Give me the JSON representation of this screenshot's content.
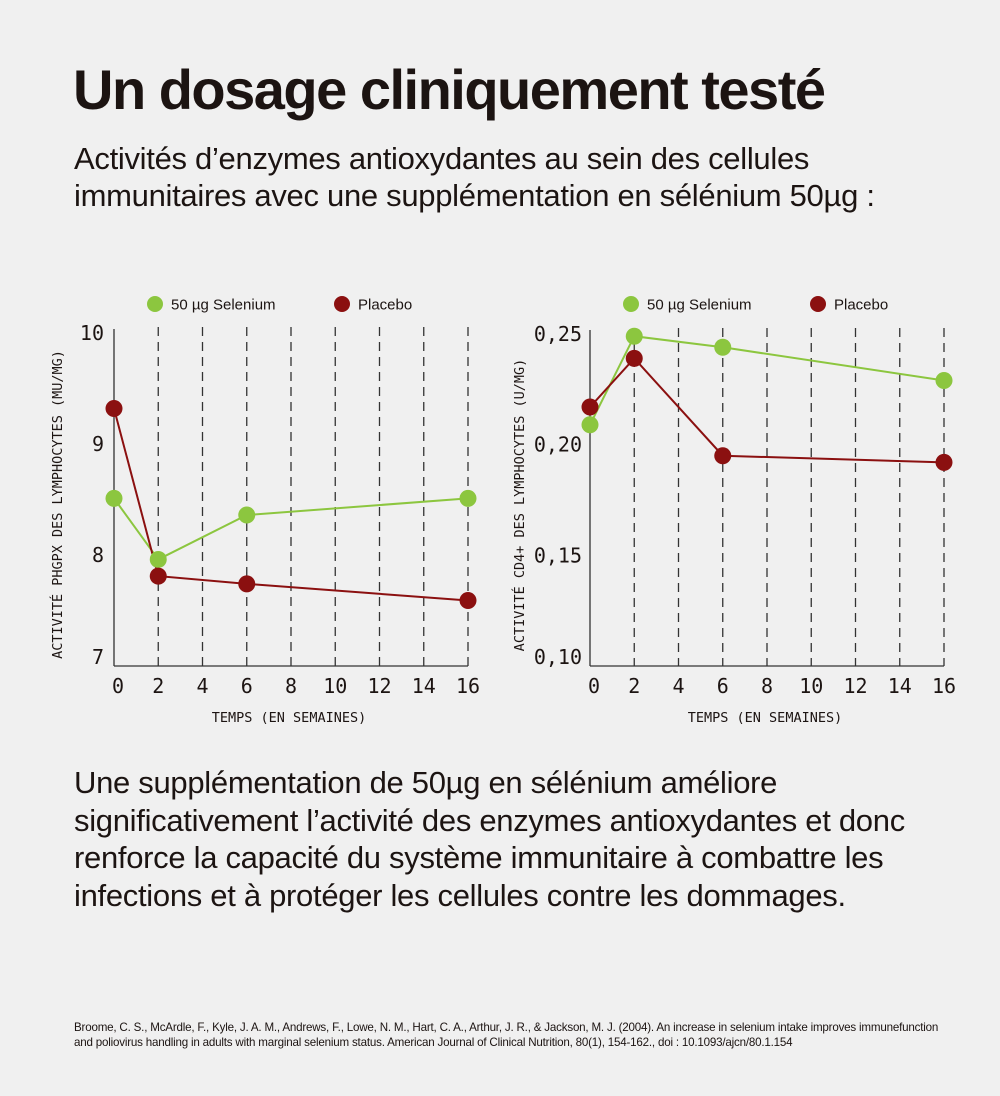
{
  "header": {
    "title": "Un dosage cliniquement testé",
    "subtitle": "Activités d’enzymes antioxydantes au sein des cellules immunitaires avec une supplémentation en sélénium 50µg :"
  },
  "colors": {
    "selenium": "#8cc63f",
    "placebo": "#8b1010",
    "axis": "#333333",
    "background": "#f0f0f0"
  },
  "chart_data": [
    {
      "type": "line",
      "title": "",
      "xlabel": "TEMPS (EN SEMAINES)",
      "ylabel": "ACTIVITÉ PHGPX DES LYMPHOCYTES (MU/MG)",
      "x_ticks": [
        0,
        2,
        4,
        6,
        8,
        10,
        12,
        14,
        16
      ],
      "x_tick_labels": [
        "0",
        "2",
        "4",
        "6",
        "8",
        "10",
        "12",
        "14",
        "16"
      ],
      "y_ticks": [
        7,
        8,
        9,
        10
      ],
      "y_tick_labels": [
        "7",
        "8",
        "9",
        "10"
      ],
      "xlim": [
        0,
        16
      ],
      "ylim": [
        7,
        10
      ],
      "grid": "vertical dashed",
      "legend": "top",
      "x": [
        0,
        2,
        6,
        16
      ],
      "series": [
        {
          "name": "50 µg Selenium",
          "color": "#8cc63f",
          "values": [
            8.51,
            7.96,
            8.36,
            8.51
          ]
        },
        {
          "name": "Placebo",
          "color": "#8b1010",
          "values": [
            9.32,
            7.81,
            7.74,
            7.59
          ]
        }
      ]
    },
    {
      "type": "line",
      "title": "",
      "xlabel": "TEMPS (EN SEMAINES)",
      "ylabel": "ACTIVITÉ CD4+ DES LYMPHOCYTES (U/MG)",
      "x_ticks": [
        0,
        2,
        4,
        6,
        8,
        10,
        12,
        14,
        16
      ],
      "x_tick_labels": [
        "0",
        "2",
        "4",
        "6",
        "8",
        "10",
        "12",
        "14",
        "16"
      ],
      "y_ticks": [
        0.1,
        0.15,
        0.2,
        0.25
      ],
      "y_tick_labels": [
        "0,10",
        "0,15",
        "0,20",
        "0,25"
      ],
      "xlim": [
        0,
        16
      ],
      "ylim": [
        0.1,
        0.25
      ],
      "grid": "vertical dashed",
      "legend": "top",
      "x": [
        0,
        2,
        6,
        16
      ],
      "series": [
        {
          "name": "50 µg Selenium",
          "color": "#8cc63f",
          "values": [
            0.209,
            0.249,
            0.244,
            0.229
          ]
        },
        {
          "name": "Placebo",
          "color": "#8b1010",
          "values": [
            0.217,
            0.239,
            0.195,
            0.192
          ]
        }
      ]
    }
  ],
  "body": {
    "text": "Une supplémentation de 50µg en sélénium améliore significativement l’activité des enzymes antioxydantes et donc renforce la capacité du système immunitaire à combattre les infections et à protéger les cellules contre les dommages."
  },
  "citation": {
    "text": "Broome, C. S., McArdle, F., Kyle, J. A. M., Andrews, F., Lowe, N. M., Hart, C. A., Arthur, J. R., & Jackson, M. J. (2004). An increase in selenium intake improves immunefunction and poliovirus handling in adults with marginal selenium status. American Journal of Clinical Nutrition, 80(1), 154-162., doi : 10.1093/ajcn/80.1.154"
  }
}
